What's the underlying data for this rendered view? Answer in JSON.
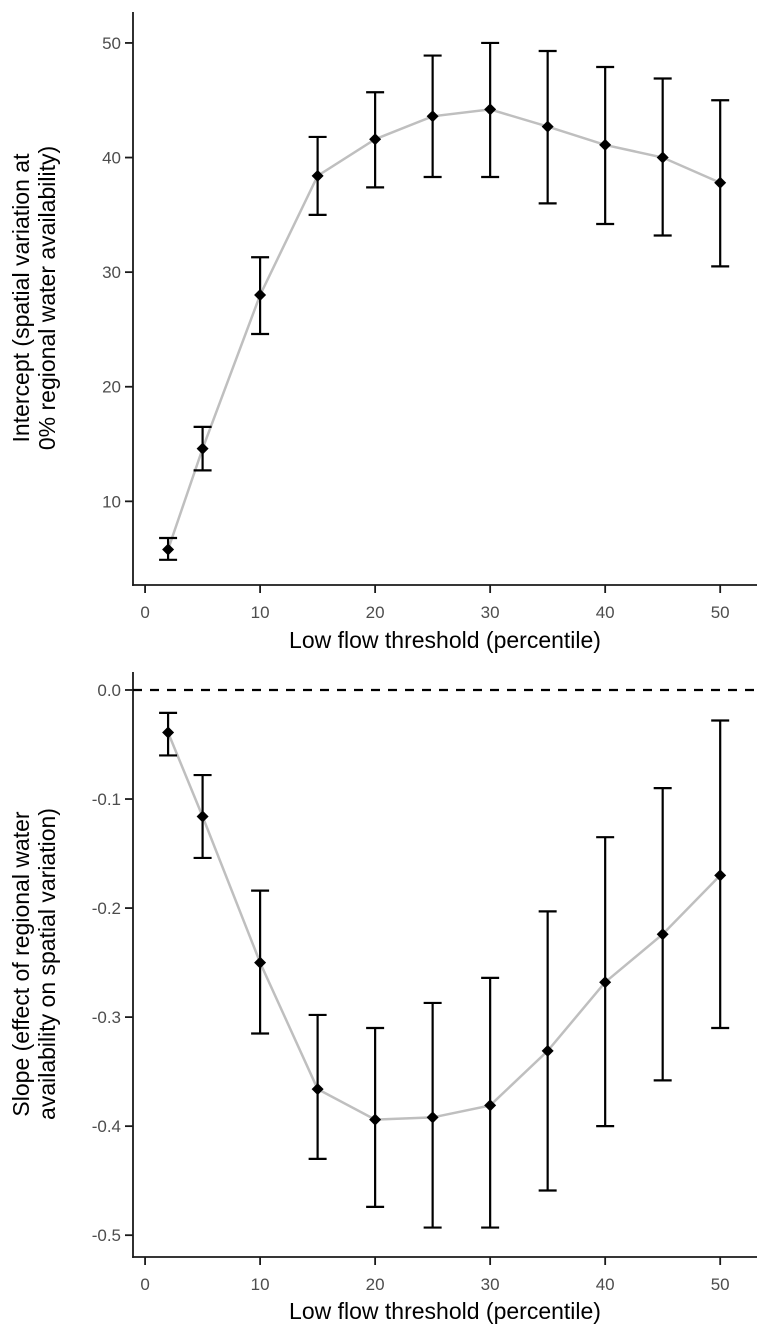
{
  "figure": {
    "background": "#ffffff",
    "panels": 2,
    "xlabel": "Low flow threshold (percentile)"
  },
  "style": {
    "axis_color": "#1a1a1a",
    "tick_label_color": "#4d4d4d",
    "title_color": "#000000",
    "point_color": "#000000",
    "error_bar_color": "#000000",
    "trend_line_color": "#bfbfbf",
    "zero_line_color": "#000000",
    "background": "#ffffff"
  },
  "chart_data": [
    {
      "type": "scatter",
      "subtype": "pointrange-with-error-bars",
      "title": "",
      "xlabel": "Low flow threshold (percentile)",
      "ylabel_lines": [
        "Intercept (spatial variation at",
        "0% regional water availability)"
      ],
      "legend": "none",
      "grid": false,
      "zero_line": false,
      "x": [
        2,
        5,
        10,
        15,
        20,
        25,
        30,
        35,
        40,
        45,
        50
      ],
      "y": [
        5.8,
        14.6,
        28.0,
        38.4,
        41.6,
        43.6,
        44.2,
        42.7,
        41.1,
        40.0,
        37.8
      ],
      "ylo": [
        4.9,
        12.7,
        24.6,
        35.0,
        37.4,
        38.3,
        38.3,
        36.0,
        34.2,
        33.2,
        30.5
      ],
      "yhi": [
        6.8,
        16.5,
        31.3,
        41.8,
        45.7,
        48.9,
        50.0,
        49.3,
        47.9,
        46.9,
        45.0
      ],
      "xtick_vals": [
        0,
        10,
        20,
        30,
        40,
        50
      ],
      "xtick_labels": [
        "0",
        "10",
        "20",
        "30",
        "40",
        "50"
      ],
      "ytick_vals": [
        10,
        20,
        30,
        40,
        50
      ],
      "ytick_labels": [
        "10",
        "20",
        "30",
        "40",
        "50"
      ],
      "xlim": [
        -1.05,
        53.2
      ],
      "ylim": [
        2.7,
        52.7
      ]
    },
    {
      "type": "scatter",
      "subtype": "pointrange-with-error-bars",
      "title": "",
      "xlabel": "Low flow threshold (percentile)",
      "ylabel_lines": [
        "Slope (effect of regional water",
        "availability on spatial variation)"
      ],
      "legend": "none",
      "grid": false,
      "zero_line": true,
      "x": [
        2,
        5,
        10,
        15,
        20,
        25,
        30,
        35,
        40,
        45,
        50
      ],
      "y": [
        -0.039,
        -0.116,
        -0.25,
        -0.366,
        -0.394,
        -0.392,
        -0.381,
        -0.331,
        -0.268,
        -0.224,
        -0.17
      ],
      "ylo": [
        -0.06,
        -0.154,
        -0.315,
        -0.43,
        -0.474,
        -0.493,
        -0.493,
        -0.459,
        -0.4,
        -0.358,
        -0.31
      ],
      "yhi": [
        -0.021,
        -0.078,
        -0.184,
        -0.298,
        -0.31,
        -0.287,
        -0.264,
        -0.203,
        -0.135,
        -0.09,
        -0.028
      ],
      "xtick_vals": [
        0,
        10,
        20,
        30,
        40,
        50
      ],
      "xtick_labels": [
        "0",
        "10",
        "20",
        "30",
        "40",
        "50"
      ],
      "ytick_vals": [
        0.0,
        -0.1,
        -0.2,
        -0.3,
        -0.4,
        -0.5
      ],
      "ytick_labels": [
        "0.0",
        "-0.1",
        "-0.2",
        "-0.3",
        "-0.4",
        "-0.5"
      ],
      "xlim": [
        -1.05,
        53.2
      ],
      "ylim": [
        -0.52,
        0.0165
      ]
    }
  ]
}
